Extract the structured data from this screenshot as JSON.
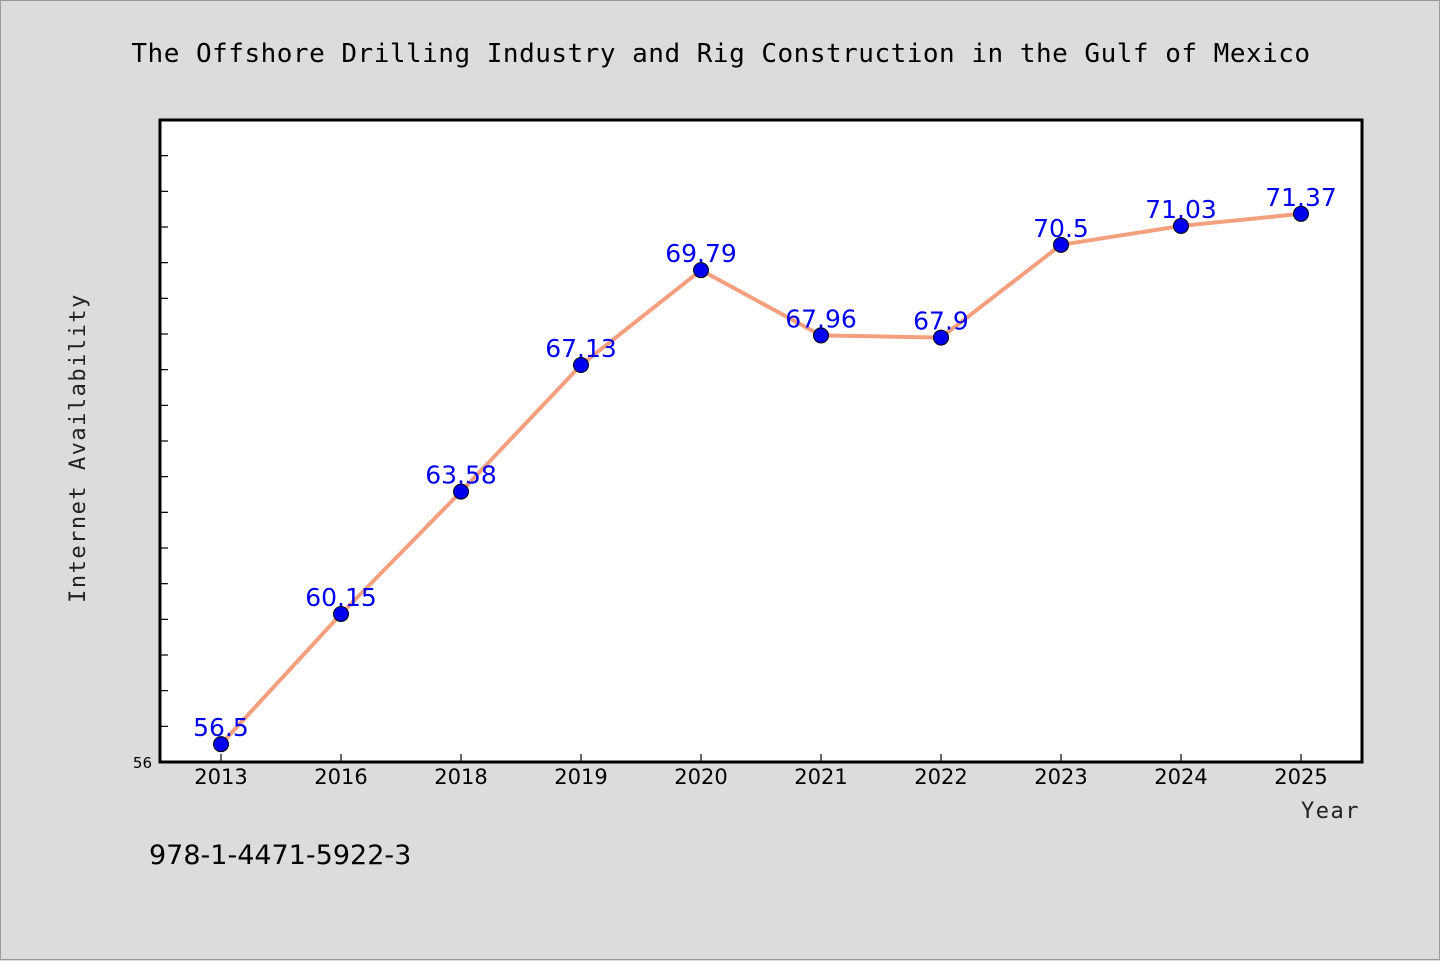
{
  "chart_data": {
    "type": "line",
    "title": "The Offshore Drilling Industry and Rig Construction in the Gulf of Mexico",
    "xlabel": "Year",
    "ylabel": "Internet Availability",
    "categories": [
      "2013",
      "2016",
      "2018",
      "2019",
      "2020",
      "2021",
      "2022",
      "2023",
      "2024",
      "2025"
    ],
    "series": [
      {
        "values": [
          56.5,
          60.15,
          63.58,
          67.13,
          69.79,
          67.96,
          67.9,
          70.5,
          71.03,
          71.37
        ],
        "labels": [
          "56.5",
          "60.15",
          "63.58",
          "67.13",
          "69.79",
          "67.96",
          "67.9",
          "70.5",
          "71.03",
          "71.37"
        ]
      }
    ],
    "ylim": [
      56,
      74
    ],
    "ytick_labels": [
      "56"
    ],
    "y_minor_tick_step": 1,
    "grid": false,
    "legend": "none",
    "colors": {
      "line": "#f4a07e",
      "marker": "#0000ee",
      "label": "#0000ee",
      "background": "#dcdcdc",
      "plot_background": "#ffffff"
    }
  },
  "footer": {
    "isbn": "978-1-4471-5922-3"
  }
}
